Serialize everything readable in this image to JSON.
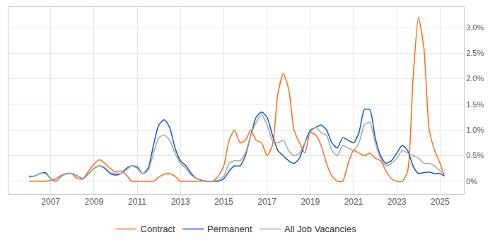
{
  "chart_data": {
    "type": "line",
    "x": [
      2006.0,
      2006.25,
      2006.5,
      2006.75,
      2007.0,
      2007.25,
      2007.5,
      2007.75,
      2008.0,
      2008.25,
      2008.5,
      2008.75,
      2009.0,
      2009.25,
      2009.5,
      2009.75,
      2010.0,
      2010.25,
      2010.5,
      2010.75,
      2011.0,
      2011.25,
      2011.5,
      2011.75,
      2012.0,
      2012.25,
      2012.5,
      2012.75,
      2013.0,
      2013.25,
      2013.5,
      2013.75,
      2014.0,
      2014.25,
      2014.5,
      2014.75,
      2015.0,
      2015.25,
      2015.5,
      2015.75,
      2016.0,
      2016.25,
      2016.5,
      2016.75,
      2017.0,
      2017.25,
      2017.5,
      2017.75,
      2018.0,
      2018.25,
      2018.5,
      2018.75,
      2019.0,
      2019.25,
      2019.5,
      2019.75,
      2020.0,
      2020.25,
      2020.5,
      2020.75,
      2021.0,
      2021.25,
      2021.5,
      2021.75,
      2022.0,
      2022.25,
      2022.5,
      2022.75,
      2023.0,
      2023.25,
      2023.5,
      2023.75,
      2024.0,
      2024.25,
      2024.5,
      2024.75,
      2025.0,
      2025.2
    ],
    "series": [
      {
        "name": "Contract",
        "color": "#ff6a1a",
        "values": [
          0.0,
          0.0,
          0.0,
          0.0,
          0.02,
          0.05,
          0.12,
          0.15,
          0.14,
          0.05,
          0.05,
          0.2,
          0.33,
          0.42,
          0.35,
          0.25,
          0.18,
          0.2,
          0.12,
          0.0,
          0.0,
          0.0,
          0.0,
          0.0,
          0.08,
          0.14,
          0.15,
          0.1,
          0.0,
          0.0,
          0.0,
          0.0,
          0.0,
          0.0,
          0.0,
          0.1,
          0.3,
          0.8,
          1.0,
          0.75,
          0.8,
          1.0,
          0.8,
          0.75,
          0.5,
          0.7,
          1.7,
          2.1,
          1.8,
          1.0,
          0.75,
          0.55,
          0.95,
          0.9,
          0.7,
          0.35,
          0.1,
          0.0,
          0.0,
          0.35,
          0.6,
          0.55,
          0.5,
          0.55,
          0.45,
          0.4,
          0.2,
          0.05,
          0.0,
          0.0,
          0.2,
          2.0,
          3.2,
          2.6,
          1.0,
          0.6,
          0.35,
          0.1
        ]
      },
      {
        "name": "Permanent",
        "color": "#1155cc",
        "values": [
          0.1,
          0.1,
          0.15,
          0.17,
          0.05,
          0.0,
          0.1,
          0.15,
          0.15,
          0.1,
          0.05,
          0.15,
          0.25,
          0.3,
          0.25,
          0.15,
          0.12,
          0.15,
          0.25,
          0.3,
          0.28,
          0.15,
          0.25,
          0.7,
          1.1,
          1.2,
          1.05,
          0.65,
          0.4,
          0.3,
          0.15,
          0.05,
          0.02,
          0.0,
          0.0,
          0.0,
          0.05,
          0.2,
          0.3,
          0.3,
          0.5,
          0.9,
          1.25,
          1.35,
          1.25,
          0.9,
          0.6,
          0.5,
          0.4,
          0.35,
          0.45,
          0.75,
          1.0,
          1.05,
          1.1,
          1.0,
          0.75,
          0.65,
          0.85,
          0.8,
          0.75,
          0.95,
          1.4,
          1.4,
          0.85,
          0.5,
          0.35,
          0.4,
          0.55,
          0.7,
          0.6,
          0.3,
          0.15,
          0.17,
          0.18,
          0.15,
          0.15,
          0.1
        ]
      },
      {
        "name": "All Job Vacancies",
        "color": "#a6a6a6",
        "values": [
          0.08,
          0.1,
          0.15,
          0.15,
          0.05,
          0.0,
          0.1,
          0.15,
          0.15,
          0.1,
          0.05,
          0.15,
          0.25,
          0.3,
          0.27,
          0.17,
          0.15,
          0.15,
          0.22,
          0.3,
          0.25,
          0.15,
          0.2,
          0.55,
          0.85,
          0.9,
          0.8,
          0.55,
          0.35,
          0.25,
          0.12,
          0.05,
          0.02,
          0.0,
          0.0,
          0.02,
          0.1,
          0.35,
          0.4,
          0.4,
          0.55,
          0.9,
          1.15,
          1.3,
          1.1,
          0.8,
          0.75,
          0.8,
          0.6,
          0.5,
          0.55,
          0.75,
          0.95,
          1.05,
          0.95,
          0.9,
          0.6,
          0.5,
          0.7,
          0.65,
          0.6,
          0.75,
          1.1,
          1.15,
          0.75,
          0.45,
          0.3,
          0.35,
          0.45,
          0.6,
          0.55,
          0.5,
          0.45,
          0.35,
          0.35,
          0.3,
          0.2,
          0.15
        ]
      }
    ],
    "xlim": [
      2005.05,
      2026.1
    ],
    "xticks": [
      2007,
      2009,
      2011,
      2013,
      2015,
      2017,
      2019,
      2021,
      2023,
      2025
    ],
    "ylim": [
      -0.25,
      3.4
    ],
    "yticks": [
      {
        "value": 0,
        "label": "0%"
      },
      {
        "value": 0.5,
        "label": "0.5%"
      },
      {
        "value": 1.0,
        "label": "1.0%"
      },
      {
        "value": 1.5,
        "label": "1.5%"
      },
      {
        "value": 2.0,
        "label": "2.0%"
      },
      {
        "value": 2.5,
        "label": "2.5%"
      },
      {
        "value": 3.0,
        "label": "3.0%"
      }
    ],
    "grid": true,
    "legend": "bottom"
  }
}
